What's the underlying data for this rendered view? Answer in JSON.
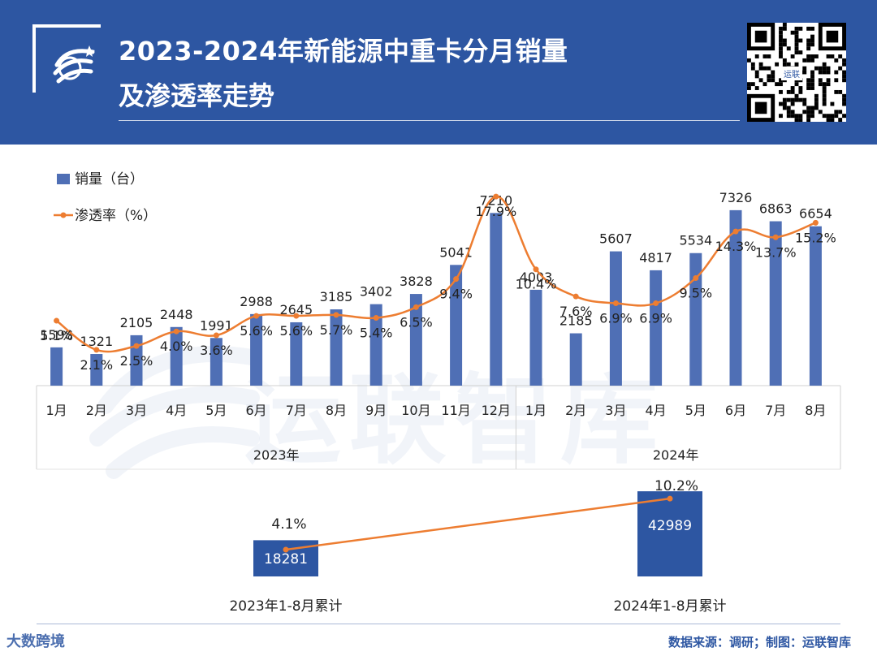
{
  "header": {
    "title_line1": "2023-2024年新能源中重卡分月销量",
    "title_line2": "及渗透率走势",
    "qr_label": "运联"
  },
  "watermark": "运联智库",
  "colors": {
    "bar": "#4F6FB5",
    "line": "#ED7D31",
    "header": "#2D56A2",
    "summary_bar": "#2D56A2"
  },
  "chart_data": [
    {
      "type": "bar+line",
      "legend": [
        "销量（台）",
        "渗透率（%）"
      ],
      "groups": [
        "2023年",
        "2024年"
      ],
      "categories": [
        "1月",
        "2月",
        "3月",
        "4月",
        "5月",
        "6月",
        "7月",
        "8月",
        "9月",
        "10月",
        "11月",
        "12月",
        "1月",
        "2月",
        "3月",
        "4月",
        "5月",
        "6月",
        "7月",
        "8月"
      ],
      "series": [
        {
          "name": "销量（台）",
          "type": "bar",
          "values": [
            1598,
            1321,
            2105,
            2448,
            1991,
            2988,
            2645,
            3185,
            3402,
            3828,
            5041,
            7210,
            4003,
            2185,
            5607,
            4817,
            5534,
            7326,
            6863,
            6654
          ]
        },
        {
          "name": "渗透率（%）",
          "type": "line",
          "values": [
            5.1,
            2.1,
            2.5,
            4.0,
            3.6,
            5.6,
            5.6,
            5.7,
            5.4,
            6.5,
            9.4,
            17.9,
            10.4,
            7.6,
            6.9,
            6.9,
            9.5,
            14.3,
            13.7,
            15.2
          ],
          "labels": [
            "5.1%",
            "2.1%",
            "2.5%",
            "4.0%",
            "3.6%",
            "5.6%",
            "5.6%",
            "5.7%",
            "5.4%",
            "6.5%",
            "9.4%",
            "17.9%",
            "10.4%",
            "7.6%",
            "6.9%",
            "6.9%",
            "9.5%",
            "14.3%",
            "13.7%",
            "15.2%"
          ]
        }
      ]
    },
    {
      "type": "bar+line",
      "categories": [
        "2023年1-8月累计",
        "2024年1-8月累计"
      ],
      "series": [
        {
          "name": "销量（台）",
          "type": "bar",
          "values": [
            18281,
            42989
          ]
        },
        {
          "name": "渗透率（%）",
          "type": "line",
          "values": [
            4.1,
            10.2
          ],
          "labels": [
            "4.1%",
            "10.2%"
          ]
        }
      ]
    }
  ],
  "footer": {
    "source": "数据来源：调研；制图：运联智库",
    "corner": "大数跨境"
  }
}
